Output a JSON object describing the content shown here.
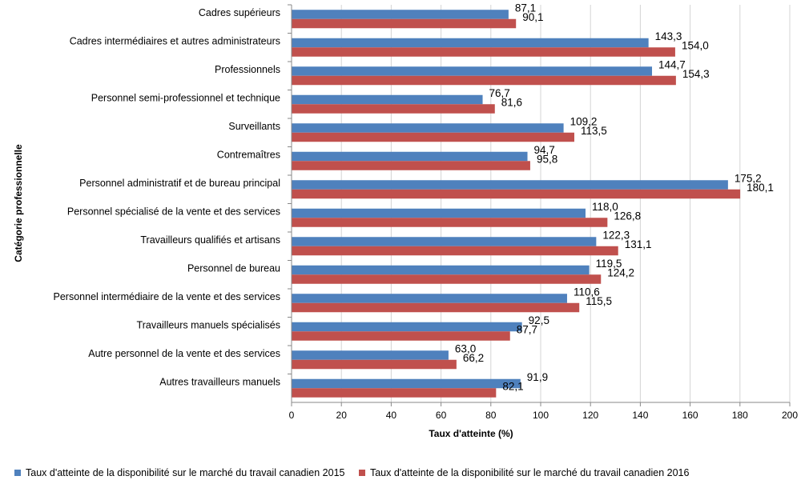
{
  "chart_data": {
    "type": "bar",
    "orientation": "horizontal",
    "categories": [
      "Cadres supérieurs",
      "Cadres intermédiaires et autres administrateurs",
      "Professionnels",
      "Personnel semi-professionnel et technique",
      "Surveillants",
      "Contremaîtres",
      "Personnel administratif et de bureau principal",
      "Personnel spécialisé de la vente et des services",
      "Travailleurs qualifiés et artisans",
      "Personnel de bureau",
      "Personnel intermédiaire de la vente et des services",
      "Travailleurs manuels spécialisés",
      "Autre personnel de la vente et des services",
      "Autres travailleurs manuels"
    ],
    "series": [
      {
        "name": "Taux d'atteinte de la disponibilité sur le marché du travail canadien 2015",
        "color": "#4F81BD",
        "values": [
          87.1,
          143.3,
          144.7,
          76.7,
          109.2,
          94.7,
          175.2,
          118.0,
          122.3,
          119.5,
          110.6,
          92.5,
          63.0,
          91.9
        ],
        "labels": [
          "87,1",
          "143,3",
          "144,7",
          "76,7",
          "109,2",
          "94,7",
          "175,2",
          "118,0",
          "122,3",
          "119,5",
          "110,6",
          "92,5",
          "63,0",
          "91,9"
        ]
      },
      {
        "name": "Taux d'atteinte de la disponibilité sur le marché du travail canadien 2016",
        "color": "#C0504D",
        "values": [
          90.1,
          154.0,
          154.3,
          81.6,
          113.5,
          95.8,
          180.1,
          126.8,
          131.1,
          124.2,
          115.5,
          87.7,
          66.2,
          82.1
        ],
        "labels": [
          "90,1",
          "154,0",
          "154,3",
          "81,6",
          "113,5",
          "95,8",
          "180,1",
          "126,8",
          "131,1",
          "124,2",
          "115,5",
          "87,7",
          "66,2",
          "82,1"
        ]
      }
    ],
    "xlabel": "Taux d'atteinte (%)",
    "ylabel": "Catégorie professionnelle",
    "xlim": [
      0,
      200
    ],
    "xticks": [
      0,
      20,
      40,
      60,
      80,
      100,
      120,
      140,
      160,
      180,
      200
    ],
    "grid": true,
    "legend_position": "bottom"
  }
}
